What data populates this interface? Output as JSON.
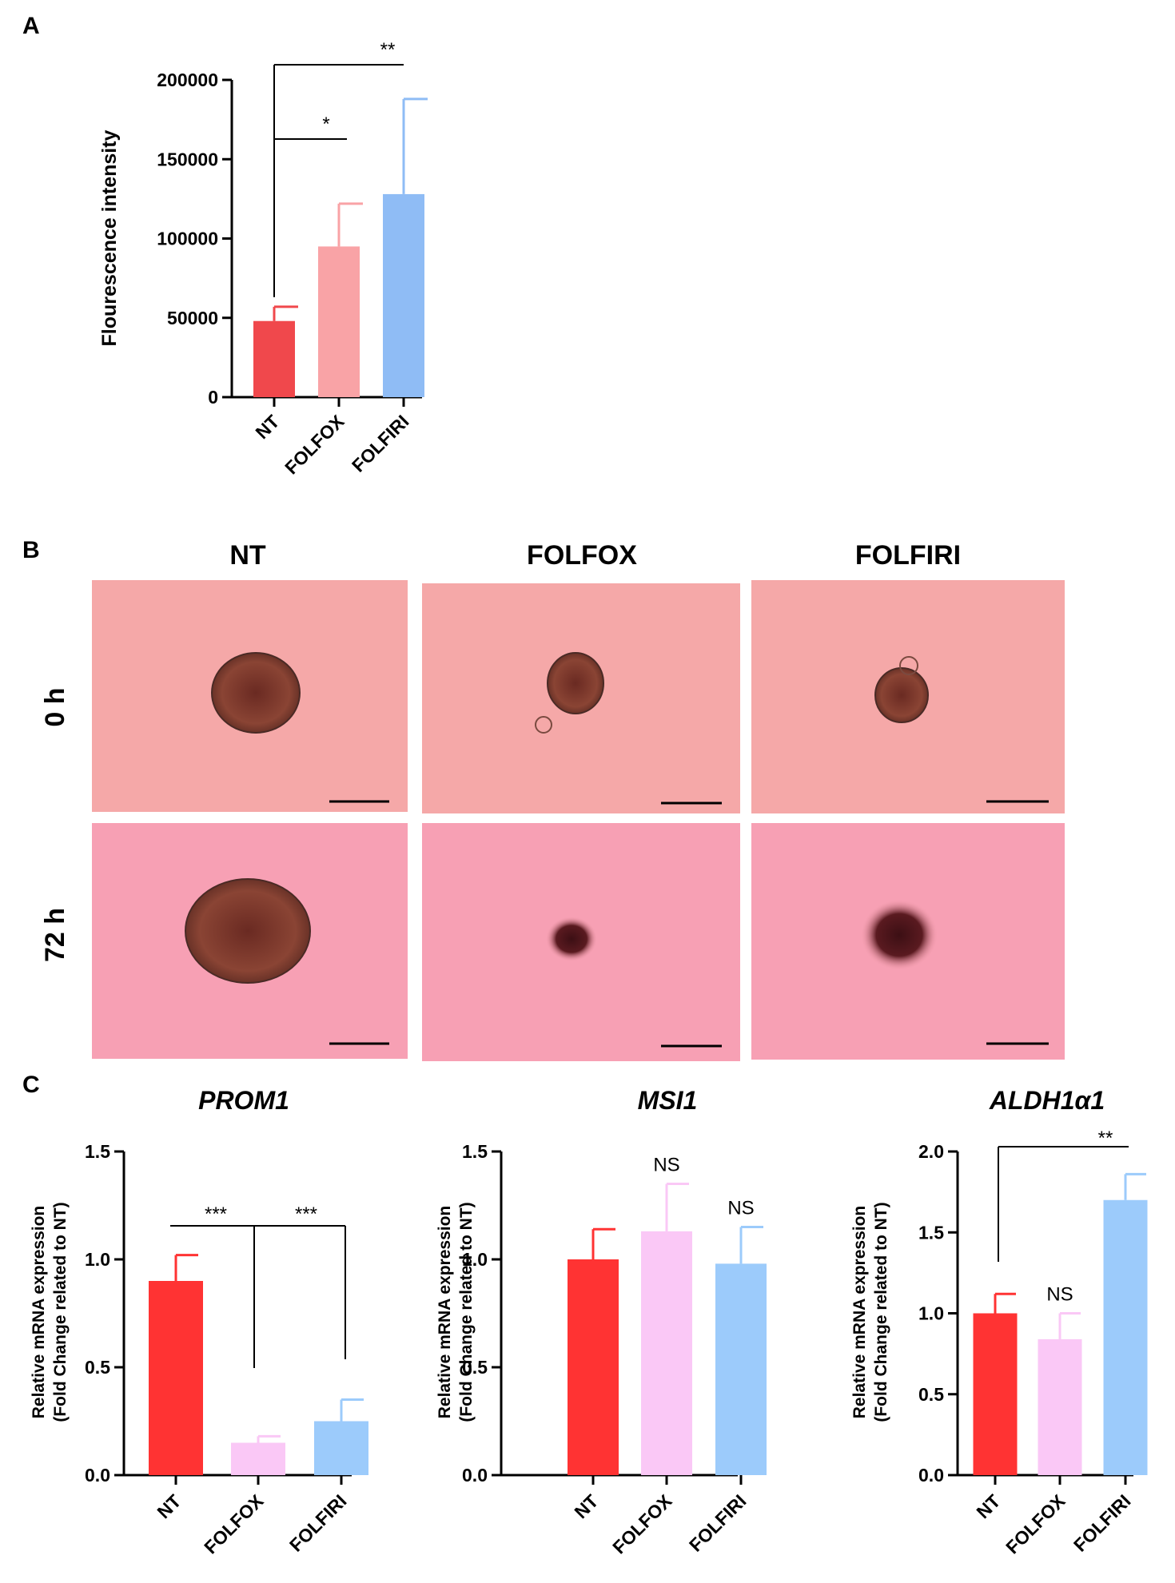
{
  "panels": {
    "A": {
      "letter": "A"
    },
    "B": {
      "letter": "B",
      "columns": [
        "NT",
        "FOLFOX",
        "FOLFIRI"
      ],
      "rows": [
        "0 h",
        "72 h"
      ]
    },
    "C": {
      "letter": "C"
    }
  },
  "colors": {
    "NT_A": "#f0484c",
    "FOLFOX_A": "#f9a3a6",
    "FOLFIRI_A": "#8fbcf5",
    "NT_C": "#ff3333",
    "FOLFOX_C": "#fac8f6",
    "FOLFIRI_C": "#9ccbfb",
    "micrograph_bg_0h": "#f5a8a8",
    "micrograph_bg_72h": "#f7a0b4",
    "spheroid": "#7a3a2c"
  },
  "chart_data": [
    {
      "id": "A",
      "type": "bar",
      "title": "",
      "ylabel": "Flourescence intensity",
      "xlabel": "",
      "ylim": [
        0,
        200000
      ],
      "yticks": [
        "0",
        "50000",
        "100000",
        "150000",
        "200000"
      ],
      "ytick_values": [
        0,
        50000,
        100000,
        150000,
        200000
      ],
      "categories": [
        "NT",
        "FOLFOX",
        "FOLFIRI"
      ],
      "values": [
        48000,
        95000,
        128000
      ],
      "errors": [
        9000,
        27000,
        60000
      ],
      "significance": [
        {
          "from": "NT",
          "to": "FOLFOX",
          "label": "*"
        },
        {
          "from": "NT",
          "to": "FOLFIRI",
          "label": "**"
        }
      ],
      "grid": false
    },
    {
      "id": "C1",
      "type": "bar",
      "title": "PROM1",
      "ylabel": [
        "Relative mRNA expression",
        "(Fold Change related to NT)"
      ],
      "ylim": [
        0,
        1.5
      ],
      "yticks": [
        "0.0",
        "0.5",
        "1.0",
        "1.5"
      ],
      "ytick_values": [
        0,
        0.5,
        1.0,
        1.5
      ],
      "categories": [
        "NT",
        "FOLFOX",
        "FOLFIRI"
      ],
      "values": [
        0.9,
        0.15,
        0.25
      ],
      "errors": [
        0.12,
        0.03,
        0.1
      ],
      "significance": [
        {
          "from": "NT",
          "to": "FOLFOX",
          "label": "***"
        },
        {
          "from": "NT",
          "to": "FOLFIRI",
          "label": "***"
        }
      ],
      "grid": false
    },
    {
      "id": "C2",
      "type": "bar",
      "title": "MSI1",
      "ylabel": [
        "Relative mRNA expression",
        "(Fold Change related to NT)"
      ],
      "ylim": [
        0,
        1.5
      ],
      "yticks": [
        "0.0",
        "0.5",
        "1.0",
        "1.5"
      ],
      "ytick_values": [
        0,
        0.5,
        1.0,
        1.5
      ],
      "categories": [
        "NT",
        "FOLFOX",
        "FOLFIRI"
      ],
      "values": [
        1.0,
        1.13,
        0.98
      ],
      "errors": [
        0.14,
        0.22,
        0.17
      ],
      "annotations": [
        "",
        "NS",
        "NS"
      ],
      "grid": false
    },
    {
      "id": "C3",
      "type": "bar",
      "title": "ALDH1α1",
      "ylabel": [
        "Relative mRNA expression",
        "(Fold Change related to NT)"
      ],
      "ylim": [
        0,
        2.0
      ],
      "yticks": [
        "0.0",
        "0.5",
        "1.0",
        "1.5",
        "2.0"
      ],
      "ytick_values": [
        0,
        0.5,
        1.0,
        1.5,
        2.0
      ],
      "categories": [
        "NT",
        "FOLFOX",
        "FOLFIRI"
      ],
      "values": [
        1.0,
        0.84,
        1.7
      ],
      "errors": [
        0.12,
        0.16,
        0.16
      ],
      "annotations": [
        "",
        "NS",
        ""
      ],
      "significance": [
        {
          "from": "NT",
          "to": "FOLFIRI",
          "label": "**"
        }
      ],
      "grid": false
    }
  ]
}
